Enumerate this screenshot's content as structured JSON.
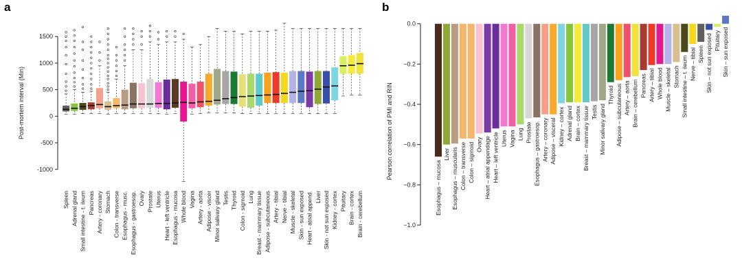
{
  "chart_data": [
    {
      "panel": "a",
      "type": "box",
      "ylabel": "Post-mortem interval (Min)",
      "ylim": [
        -1300,
        1800
      ],
      "yticks": [
        -1000,
        -500,
        0,
        500,
        1000,
        1500
      ],
      "categories": [
        {
          "name": "Spleen",
          "color": "#5f5f5f",
          "q1": 90,
          "median": 130,
          "q3": 200,
          "whisker_low": 40,
          "whisker_high": 420,
          "outliers": [
            480,
            560,
            650,
            800,
            980,
            1150,
            1300,
            1420,
            1500,
            1580
          ]
        },
        {
          "name": "Adrenal gland",
          "color": "#86c43e",
          "q1": 100,
          "median": 150,
          "q3": 240,
          "whisker_low": 40,
          "whisker_high": 500,
          "outliers": [
            560,
            640,
            720,
            820,
            940,
            1050,
            1180,
            1300,
            1420,
            1520,
            1620
          ]
        },
        {
          "name": "Small intestine - t. ileum",
          "color": "#4a4a1a",
          "q1": 120,
          "median": 180,
          "q3": 250,
          "whisker_low": 50,
          "whisker_high": 450,
          "outliers": [
            520,
            600,
            720,
            880,
            1050,
            1250,
            1400,
            1680
          ]
        },
        {
          "name": "Pancreas",
          "color": "#a83b2f",
          "q1": 130,
          "median": 200,
          "q3": 260,
          "whisker_low": 50,
          "whisker_high": 470,
          "outliers": [
            520,
            600,
            700,
            800,
            900,
            1000,
            1100,
            1200,
            1300,
            1400,
            1500
          ]
        },
        {
          "name": "Artery - coronary",
          "color": "#f5a08a",
          "q1": 150,
          "median": 220,
          "q3": 530,
          "whisker_low": 50,
          "whisker_high": 950,
          "outliers": [
            1050,
            1200,
            1400
          ]
        },
        {
          "name": "Stomach",
          "color": "#d9bf8f",
          "q1": 120,
          "median": 180,
          "q3": 280,
          "whisker_low": 40,
          "whisker_high": 450,
          "outliers": [
            500,
            560,
            620,
            700,
            760,
            840,
            920,
            1000,
            1080,
            1150,
            1250,
            1350,
            1450,
            1550,
            1650
          ]
        },
        {
          "name": "Colon - transverse",
          "color": "#f5b56b",
          "q1": 150,
          "median": 200,
          "q3": 340,
          "whisker_low": 50,
          "whisker_high": 700,
          "outliers": [
            760,
            850,
            950,
            1050,
            1150,
            1300
          ]
        },
        {
          "name": "Esophagus - musc.",
          "color": "#b99c84",
          "q1": 130,
          "median": 210,
          "q3": 500,
          "whisker_low": 50,
          "whisker_high": 950,
          "outliers": [
            1050,
            1150,
            1250,
            1350,
            1500,
            1650
          ]
        },
        {
          "name": "Esophagus - gastroesop.",
          "color": "#8b7363",
          "q1": 150,
          "median": 230,
          "q3": 630,
          "whisker_low": 50,
          "whisker_high": 1250,
          "outliers": [
            1350,
            1450,
            1550,
            1650
          ]
        },
        {
          "name": "Ovary",
          "color": "#f8c2d1",
          "q1": 150,
          "median": 230,
          "q3": 620,
          "whisker_low": 50,
          "whisker_high": 1250,
          "outliers": [
            1350,
            1500,
            1600
          ]
        },
        {
          "name": "Prostate",
          "color": "#d8d8d8",
          "q1": 160,
          "median": 230,
          "q3": 700,
          "whisker_low": 50,
          "whisker_high": 1400,
          "outliers": [
            1500,
            1600,
            1700
          ]
        },
        {
          "name": "Uterus",
          "color": "#f07ad2",
          "q1": 160,
          "median": 240,
          "q3": 640,
          "whisker_low": 50,
          "whisker_high": 1350,
          "outliers": [
            1450,
            1580
          ]
        },
        {
          "name": "Heart - left ventricle",
          "color": "#6b2d99",
          "q1": 130,
          "median": 240,
          "q3": 690,
          "whisker_low": 40,
          "whisker_high": 1400,
          "outliers": [
            1500,
            1600
          ]
        },
        {
          "name": "Esophagus - mucosa",
          "color": "#5a3a25",
          "q1": 160,
          "median": 250,
          "q3": 700,
          "whisker_low": 50,
          "whisker_high": 1400,
          "outliers": [
            1500,
            1600
          ]
        },
        {
          "name": "Whole blood",
          "color": "#e4178f",
          "q1": -100,
          "median": 260,
          "q3": 650,
          "whisker_low": -1230,
          "whisker_high": 1450,
          "outliers": [
            1550
          ]
        },
        {
          "name": "Vagina",
          "color": "#ef5fa6",
          "q1": 150,
          "median": 250,
          "q3": 610,
          "whisker_low": 40,
          "whisker_high": 1300,
          "outliers": []
        },
        {
          "name": "Artery - aorta",
          "color": "#f0506a",
          "q1": 170,
          "median": 270,
          "q3": 650,
          "whisker_low": 50,
          "whisker_high": 1350,
          "outliers": []
        },
        {
          "name": "Adipose - viscer",
          "color": "#f7a92c",
          "q1": 200,
          "median": 280,
          "q3": 800,
          "whisker_low": 60,
          "whisker_high": 1500,
          "outliers": []
        },
        {
          "name": "Minor salivary gland",
          "color": "#9ea887",
          "q1": 220,
          "median": 300,
          "q3": 890,
          "whisker_low": 60,
          "whisker_high": 1650,
          "outliers": []
        },
        {
          "name": "Testis",
          "color": "#a6a6a6",
          "q1": 230,
          "median": 330,
          "q3": 850,
          "whisker_low": 60,
          "whisker_high": 1600,
          "outliers": []
        },
        {
          "name": "Thyroid",
          "color": "#1a7a36",
          "q1": 230,
          "median": 350,
          "q3": 840,
          "whisker_low": 60,
          "whisker_high": 1600,
          "outliers": []
        },
        {
          "name": "Colon - sigmoid",
          "color": "#e5e077",
          "q1": 180,
          "median": 370,
          "q3": 790,
          "whisker_low": 50,
          "whisker_high": 1550,
          "outliers": []
        },
        {
          "name": "Lung",
          "color": "#a8d96a",
          "q1": 160,
          "median": 380,
          "q3": 800,
          "whisker_low": 50,
          "whisker_high": 1600,
          "outliers": []
        },
        {
          "name": "Breast - mammary tissue",
          "color": "#62c9c9",
          "q1": 200,
          "median": 390,
          "q3": 800,
          "whisker_low": 50,
          "whisker_high": 1600,
          "outliers": []
        },
        {
          "name": "Adipose - subcutaneous",
          "color": "#f9a21c",
          "q1": 250,
          "median": 400,
          "q3": 820,
          "whisker_low": 50,
          "whisker_high": 1600,
          "outliers": []
        },
        {
          "name": "Artery - tibial",
          "color": "#ee3a2a",
          "q1": 250,
          "median": 410,
          "q3": 830,
          "whisker_low": 50,
          "whisker_high": 1620,
          "outliers": []
        },
        {
          "name": "Nerve - tibial",
          "color": "#f5d81c",
          "q1": 250,
          "median": 430,
          "q3": 820,
          "whisker_low": 50,
          "whisker_high": 1750,
          "outliers": []
        },
        {
          "name": "Muscle - skeletal",
          "color": "#b4b2e8",
          "q1": 250,
          "median": 450,
          "q3": 850,
          "whisker_low": 50,
          "whisker_high": 1650,
          "outliers": []
        },
        {
          "name": "Skin - sun exposed",
          "color": "#5b78c6",
          "q1": 250,
          "median": 470,
          "q3": 850,
          "whisker_low": 50,
          "whisker_high": 1650,
          "outliers": []
        },
        {
          "name": "Heart - atrial append.",
          "color": "#7b3aa6",
          "q1": 170,
          "median": 480,
          "q3": 840,
          "whisker_low": 50,
          "whisker_high": 1650,
          "outliers": []
        },
        {
          "name": "Liver",
          "color": "#8fa83a",
          "q1": 230,
          "median": 510,
          "q3": 850,
          "whisker_low": 50,
          "whisker_high": 1650,
          "outliers": []
        },
        {
          "name": "Skin - not sun exposed",
          "color": "#3a4fa8",
          "q1": 240,
          "median": 550,
          "q3": 850,
          "whisker_low": 50,
          "whisker_high": 1650,
          "outliers": []
        },
        {
          "name": "Kidney - cortex",
          "color": "#7fd6e0",
          "q1": 300,
          "median": 570,
          "q3": 920,
          "whisker_low": 50,
          "whisker_high": 1650,
          "outliers": []
        },
        {
          "name": "Pituitary",
          "color": "#d8ef5f",
          "q1": 800,
          "median": 950,
          "q3": 1130,
          "whisker_low": 380,
          "whisker_high": 1650,
          "outliers": []
        },
        {
          "name": "Brain - cortex",
          "color": "#f3ea3b",
          "q1": 800,
          "median": 960,
          "q3": 1150,
          "whisker_low": 400,
          "whisker_high": 1650,
          "outliers": []
        },
        {
          "name": "Brain - cerebellum",
          "color": "#f1e13a",
          "q1": 800,
          "median": 990,
          "q3": 1190,
          "whisker_low": 400,
          "whisker_high": 1650,
          "outliers": []
        }
      ]
    },
    {
      "panel": "b",
      "type": "bar",
      "ylabel": "Pearson correlation of PMI and RIN",
      "ylim": [
        -1.0,
        0.05
      ],
      "yticks": [
        0.0,
        -0.2,
        -0.4,
        -0.6,
        -0.8,
        -1.0
      ],
      "ytick_labels": [
        "0.0",
        "−0.2",
        "−0.4",
        "−0.6",
        "−0.8",
        "−1.0"
      ],
      "categories": [
        "Esophagus – mucosa",
        "Liver",
        "Esophagus – muscularis",
        "Colon – transverse",
        "Colon – sigmoid",
        "Ovary",
        "Heart – atrial appendage",
        "Heart – left ventricle",
        "Uterus",
        "Vagina",
        "Lung",
        "Prostate",
        "Esophagus – gastroesop.",
        "Artery – coronary",
        "Adipose – visceral",
        "Kidney – cortex",
        "Adrenal gland",
        "Brain – cortex",
        "Breast – mammary tissue",
        "Testis",
        "Minor salivary gland",
        "Thyroid",
        "Adipose – subcutaneous",
        "Artery – aorta",
        "Brain – cerebellum",
        "Pancreas",
        "Artery – tibial",
        "Whole blood",
        "Muscle – skeletal",
        "Stomach",
        "Small intestine – t. ileum",
        "Nerve – tibial",
        "Spleen",
        "Skin – not sun exposed",
        "Pituitary",
        "Skin – sun exposed"
      ],
      "values": [
        -0.66,
        -0.6,
        -0.595,
        -0.57,
        -0.57,
        -0.545,
        -0.54,
        -0.52,
        -0.51,
        -0.51,
        -0.5,
        -0.47,
        -0.465,
        -0.45,
        -0.45,
        -0.395,
        -0.39,
        -0.39,
        -0.39,
        -0.385,
        -0.38,
        -0.29,
        -0.28,
        -0.265,
        -0.26,
        -0.23,
        -0.205,
        -0.2,
        -0.2,
        -0.19,
        -0.14,
        -0.1,
        -0.09,
        -0.03,
        -0.015,
        0.04
      ],
      "colors": [
        "#4a2a1a",
        "#8fa83a",
        "#b99c84",
        "#f5b56b",
        "#f5b56b",
        "#f8c2d1",
        "#7b3aa6",
        "#6b2d99",
        "#f07ad2",
        "#ef5fa6",
        "#a8d96a",
        "#d8d8d8",
        "#8b7363",
        "#f5a08a",
        "#f7a92c",
        "#7fd6e0",
        "#86c43e",
        "#f3ea3b",
        "#62c9c9",
        "#a6a6a6",
        "#9ea887",
        "#1a7a36",
        "#f9a21c",
        "#f0506a",
        "#f1e13a",
        "#a83b2f",
        "#ee3a2a",
        "#e4178f",
        "#b4b2e8",
        "#d9bf8f",
        "#4a4a1a",
        "#f5d81c",
        "#5f5f5f",
        "#3a4fa8",
        "#d8ef5f",
        "#5b78c6"
      ]
    }
  ]
}
